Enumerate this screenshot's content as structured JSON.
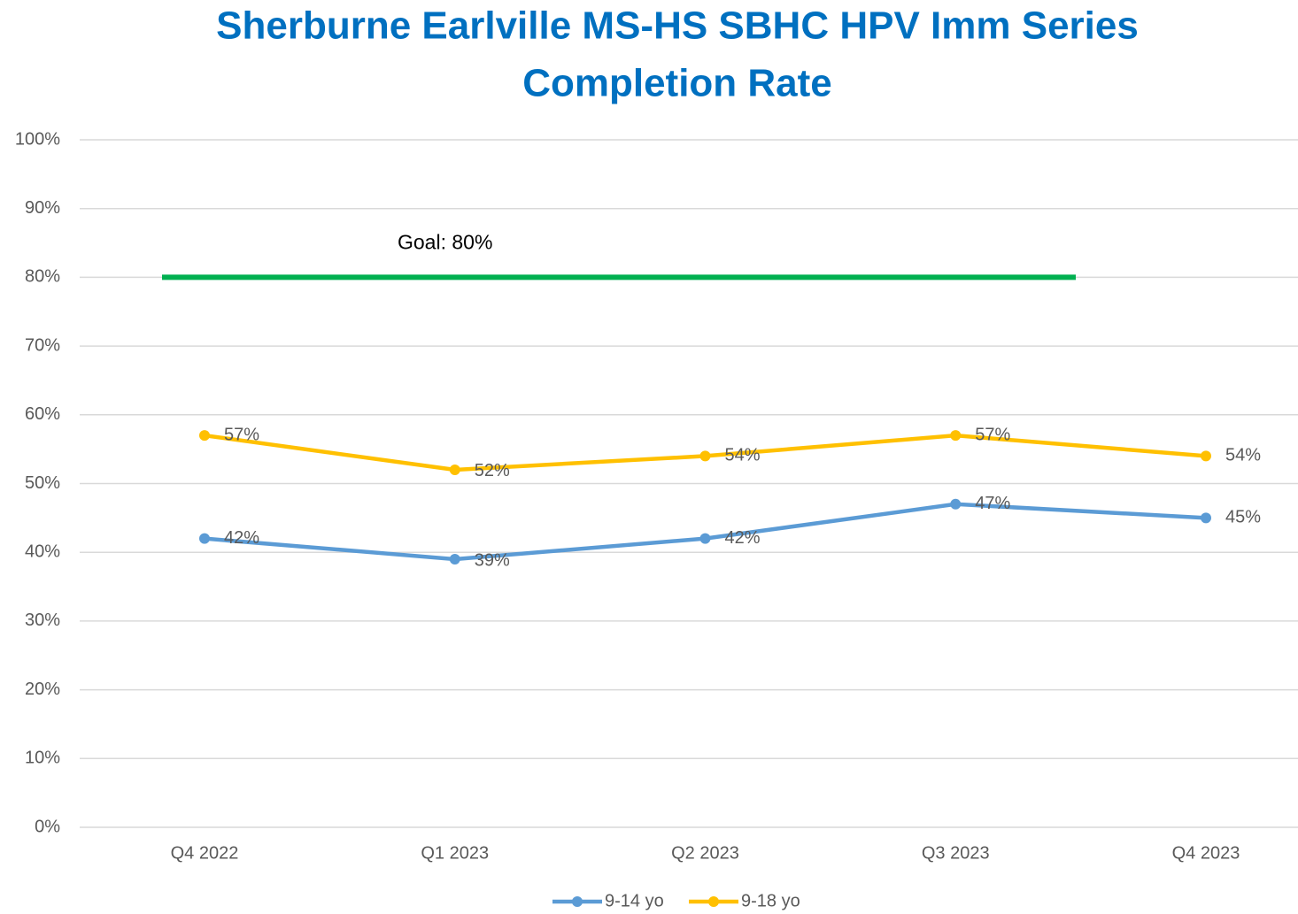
{
  "chart_data": {
    "type": "line",
    "title": [
      "Sherburne Earlville MS-HS SBHC HPV Imm Series",
      "Completion Rate"
    ],
    "categories": [
      "Q4 2022",
      "Q1 2023",
      "Q2 2023",
      "Q3 2023",
      "Q4 2023"
    ],
    "series": [
      {
        "name": "9-14 yo",
        "color": "#5b9bd5",
        "values": [
          42,
          39,
          42,
          47,
          45
        ],
        "value_labels": [
          "42%",
          "39%",
          "42%",
          "47%",
          "45%"
        ]
      },
      {
        "name": "9-18 yo",
        "color": "#ffc000",
        "values": [
          57,
          52,
          54,
          57,
          54
        ],
        "value_labels": [
          "57%",
          "52%",
          "54%",
          "57%",
          "54%"
        ]
      }
    ],
    "goal": {
      "value": 80,
      "label": "Goal: 80%",
      "color": "#00b050"
    },
    "ylim": [
      0,
      100
    ],
    "yticks": [
      {
        "value": 0,
        "label": "0%"
      },
      {
        "value": 10,
        "label": "10%"
      },
      {
        "value": 20,
        "label": "20%"
      },
      {
        "value": 30,
        "label": "30%"
      },
      {
        "value": 40,
        "label": "40%"
      },
      {
        "value": 50,
        "label": "50%"
      },
      {
        "value": 60,
        "label": "60%"
      },
      {
        "value": 70,
        "label": "70%"
      },
      {
        "value": 80,
        "label": "80%"
      },
      {
        "value": 90,
        "label": "90%"
      },
      {
        "value": 100,
        "label": "100%"
      }
    ],
    "grid": true,
    "legend": "bottom"
  }
}
